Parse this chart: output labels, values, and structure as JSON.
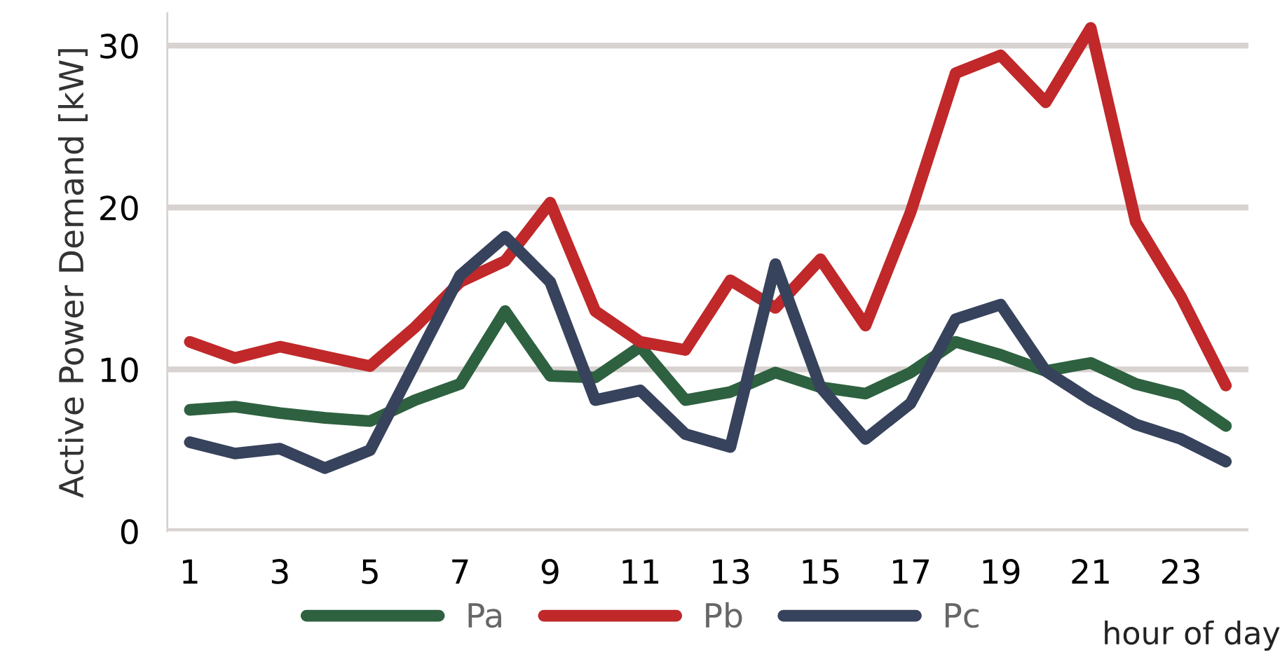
{
  "chart_data": {
    "type": "line",
    "ylabel": "Active Power Demand [kW]",
    "xlabel": "hour of day",
    "x": [
      1,
      2,
      3,
      4,
      5,
      6,
      7,
      8,
      9,
      10,
      11,
      12,
      13,
      14,
      15,
      16,
      17,
      18,
      19,
      20,
      21,
      22,
      23,
      24
    ],
    "xlim": [
      0.5,
      24.5
    ],
    "xticks": [
      1,
      3,
      5,
      7,
      9,
      11,
      13,
      15,
      17,
      19,
      21,
      23
    ],
    "ylim": [
      0,
      32
    ],
    "yticks": [
      0,
      10,
      20,
      30
    ],
    "grid": "y",
    "legend": "bottom",
    "marker": "none",
    "line_style": "solid",
    "series": [
      {
        "name": "Pa",
        "color": "#2e6140",
        "values": [
          7.5,
          7.7,
          7.3,
          7.0,
          6.8,
          8.1,
          9.1,
          13.6,
          9.6,
          9.5,
          11.4,
          8.1,
          8.6,
          9.8,
          8.9,
          8.5,
          9.8,
          11.7,
          10.9,
          9.9,
          10.4,
          9.1,
          8.4,
          6.5
        ]
      },
      {
        "name": "Pb",
        "color": "#c0282a",
        "values": [
          11.7,
          10.7,
          11.4,
          10.8,
          10.2,
          12.6,
          15.4,
          16.7,
          20.3,
          13.6,
          11.7,
          11.2,
          15.5,
          13.8,
          16.8,
          12.7,
          19.7,
          28.3,
          29.4,
          26.5,
          31.1,
          19.1,
          14.5,
          9.0
        ]
      },
      {
        "name": "Pc",
        "color": "#37425c",
        "values": [
          5.5,
          4.8,
          5.1,
          3.9,
          5.0,
          10.4,
          15.8,
          18.2,
          15.4,
          8.1,
          8.7,
          6.0,
          5.2,
          16.5,
          8.9,
          5.7,
          7.9,
          13.1,
          14.0,
          9.9,
          8.1,
          6.6,
          5.7,
          4.3
        ]
      }
    ]
  }
}
